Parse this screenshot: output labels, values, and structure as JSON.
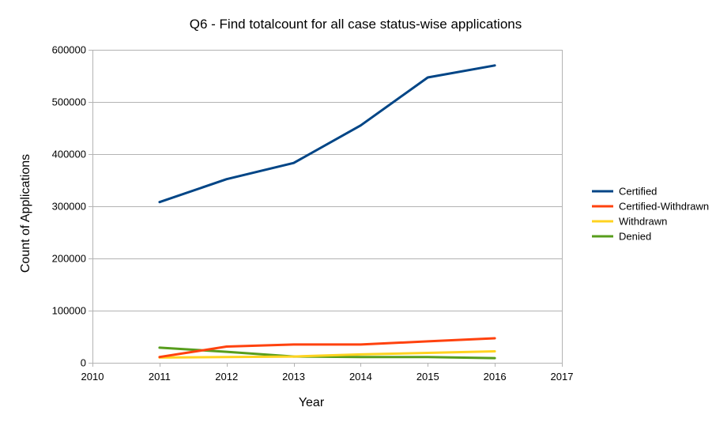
{
  "chart_data": {
    "type": "line",
    "title": "Q6 - Find totalcount for all case status-wise  applications",
    "xlabel": "Year",
    "ylabel": "Count of Applications",
    "x": [
      2011,
      2012,
      2013,
      2014,
      2015,
      2016
    ],
    "xlim": [
      2010,
      2017
    ],
    "ylim": [
      0,
      600000
    ],
    "x_ticks": [
      2010,
      2011,
      2012,
      2013,
      2014,
      2015,
      2016,
      2017
    ],
    "y_ticks": [
      0,
      100000,
      200000,
      300000,
      400000,
      500000,
      600000
    ],
    "grid": "horizontal",
    "legend_position": "right",
    "series": [
      {
        "name": "Certified",
        "color": "#004586",
        "values": [
          308000,
          352000,
          383000,
          455000,
          547000,
          570000
        ]
      },
      {
        "name": "Certified-Withdrawn",
        "color": "#ff420e",
        "values": [
          11000,
          31000,
          35000,
          35000,
          41000,
          47000
        ]
      },
      {
        "name": "Withdrawn",
        "color": "#ffd320",
        "values": [
          10000,
          11000,
          12000,
          16000,
          19000,
          22000
        ]
      },
      {
        "name": "Denied",
        "color": "#579d1c",
        "values": [
          29000,
          21000,
          12000,
          11000,
          11000,
          9000
        ]
      }
    ]
  }
}
